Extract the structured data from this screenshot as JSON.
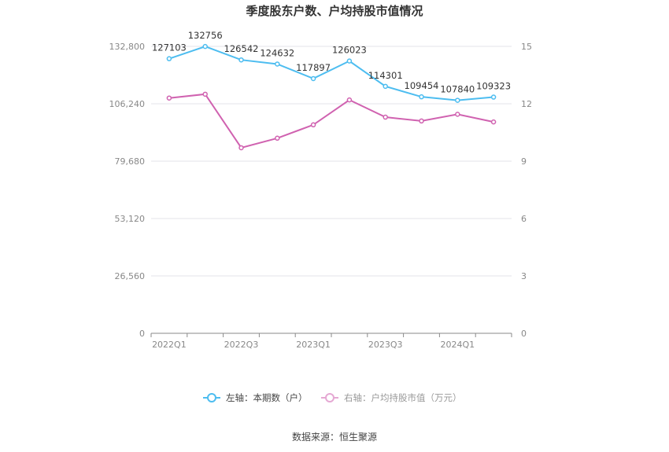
{
  "chart_data": {
    "type": "line",
    "title": "季度股东户数、户均持股市值情况",
    "x": [
      "2022Q1",
      "2022Q2",
      "2022Q3",
      "2022Q4",
      "2023Q1",
      "2023Q2",
      "2023Q3",
      "2023Q4",
      "2024Q1",
      "2024Q2"
    ],
    "x_tick_labels": [
      "2022Q1",
      "2022Q3",
      "2023Q1",
      "2023Q3",
      "2024Q1"
    ],
    "left_axis": {
      "ylim": [
        0,
        132800
      ],
      "ticks": [
        0,
        26560,
        53120,
        79680,
        106240,
        132800
      ],
      "tick_labels": [
        "0",
        "26,560",
        "53,120",
        "79,680",
        "106,240",
        "132,800"
      ]
    },
    "right_axis": {
      "ylim": [
        0,
        15
      ],
      "ticks": [
        0,
        3,
        6,
        9,
        12,
        15
      ],
      "tick_labels": [
        "0",
        "3",
        "6",
        "9",
        "12",
        "15"
      ]
    },
    "grid": true,
    "legend_position": "bottom",
    "series": [
      {
        "name": "左轴：本期数（户）",
        "axis": "left",
        "color": "#4dbdf0",
        "values": [
          127103,
          132756,
          126542,
          124632,
          117897,
          126023,
          114301,
          109454,
          107840,
          109323
        ],
        "labels": [
          "127103",
          "132756",
          "126542",
          "124632",
          "117897",
          "126023",
          "114301",
          "109454",
          "107840",
          "109323"
        ]
      },
      {
        "name": "右轴：户均持股市值（万元）",
        "axis": "right",
        "color": "#d062b0",
        "values": [
          12.3,
          12.5,
          9.7,
          10.2,
          10.9,
          12.2,
          11.3,
          11.1,
          11.45,
          11.05
        ]
      }
    ]
  },
  "source": "数据来源：恒生聚源"
}
